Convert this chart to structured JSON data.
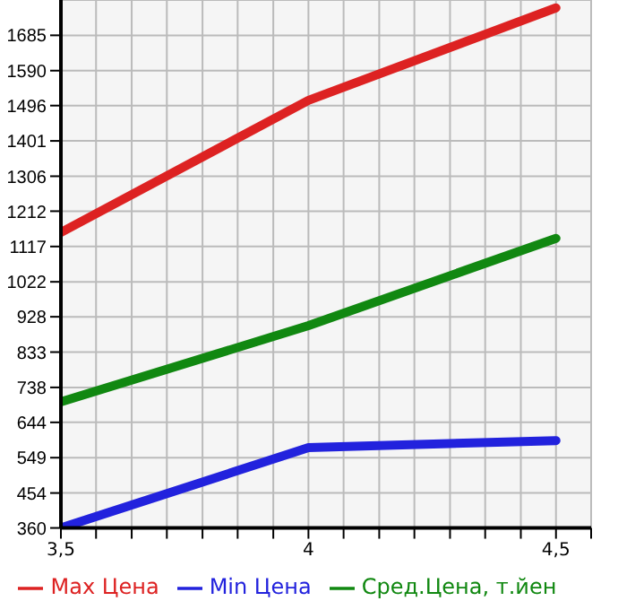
{
  "chart_data": {
    "type": "line",
    "x": [
      3.5,
      4,
      4.5
    ],
    "xlim": [
      3.5,
      4.571
    ],
    "xticks": [
      {
        "value": 3.5,
        "label": "3,5"
      },
      {
        "value": 3.571,
        "label": null
      },
      {
        "value": 3.643,
        "label": null
      },
      {
        "value": 3.714,
        "label": null
      },
      {
        "value": 3.786,
        "label": null
      },
      {
        "value": 3.857,
        "label": null
      },
      {
        "value": 3.929,
        "label": null
      },
      4,
      {
        "value": 4.071,
        "label": null
      },
      {
        "value": 4.143,
        "label": null
      },
      {
        "value": 4.214,
        "label": null
      },
      {
        "value": 4.286,
        "label": null
      },
      {
        "value": 4.357,
        "label": null
      },
      {
        "value": 4.429,
        "label": null
      },
      {
        "value": 4.5,
        "label": "4,5"
      },
      {
        "value": 4.571,
        "label": null
      }
    ],
    "ylim": [
      360,
      1780
    ],
    "yticks": [
      360,
      454,
      549,
      644,
      738,
      833,
      928,
      1022,
      1117,
      1212,
      1306,
      1401,
      1496,
      1590,
      1685
    ],
    "series": [
      {
        "name": "Max Цена",
        "color": "#dd2222",
        "values": [
          1155,
          1510,
          1759
        ]
      },
      {
        "name": "Min Цена",
        "color": "#2222dd",
        "values": [
          360,
          576,
          595
        ]
      },
      {
        "name": "Сред.Цена, т.йен",
        "color": "#118811",
        "values": [
          699,
          904,
          1139
        ]
      }
    ],
    "grid": true,
    "legend": "bottom",
    "marker": "none",
    "line_style": "solid"
  }
}
